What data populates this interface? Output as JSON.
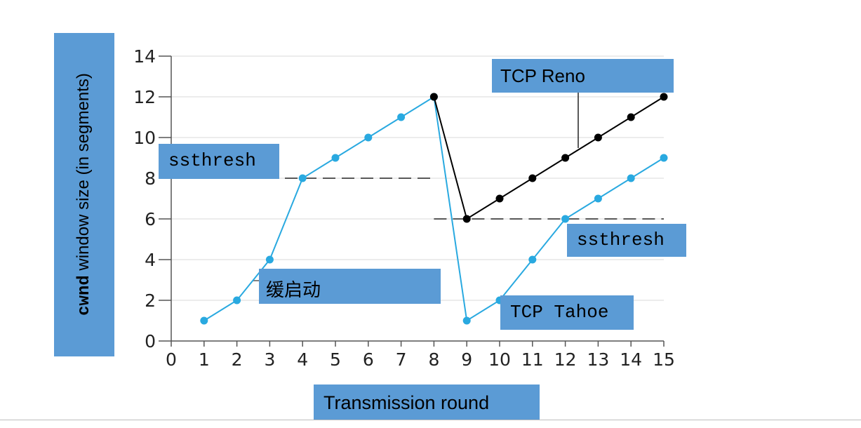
{
  "chart_data": {
    "type": "line",
    "xlabel": "Transmission round",
    "ylabel_mono": "cwnd",
    "ylabel_rest": " window size (in segments)",
    "xlim": [
      0,
      15
    ],
    "ylim": [
      0,
      14
    ],
    "x_ticks": [
      "0",
      "1",
      "2",
      "3",
      "4",
      "5",
      "6",
      "7",
      "8",
      "9",
      "10",
      "11",
      "12",
      "13",
      "14",
      "15"
    ],
    "y_ticks": [
      "0",
      "2",
      "4",
      "6",
      "8",
      "10",
      "12",
      "14"
    ],
    "grid": "horizontal",
    "series": [
      {
        "name": "TCP Tahoe",
        "color": "#29a9e0",
        "x": [
          1,
          2,
          3,
          4,
          5,
          6,
          7,
          8,
          9,
          10,
          11,
          12,
          13,
          14,
          15
        ],
        "y": [
          1,
          2,
          4,
          8,
          9,
          10,
          11,
          12,
          1,
          2,
          4,
          6,
          7,
          8,
          9
        ]
      },
      {
        "name": "TCP Reno",
        "color": "#000000",
        "x": [
          8,
          9,
          10,
          11,
          12,
          13,
          14,
          15
        ],
        "y": [
          12,
          6,
          7,
          8,
          9,
          10,
          11,
          12
        ]
      }
    ],
    "thresholds": [
      {
        "label": "ssthresh",
        "y": 8,
        "x_from": 0,
        "x_to": 8
      },
      {
        "label": "ssthresh",
        "y": 6,
        "x_from": 8,
        "x_to": 15
      }
    ],
    "annotations": {
      "ssthresh_first": "ssthresh",
      "slow_start": "缓启动",
      "reno": "TCP Reno",
      "ssthresh_second": "ssthresh",
      "tahoe": "TCP Tahoe"
    },
    "callout_color": "#5b9bd5"
  }
}
